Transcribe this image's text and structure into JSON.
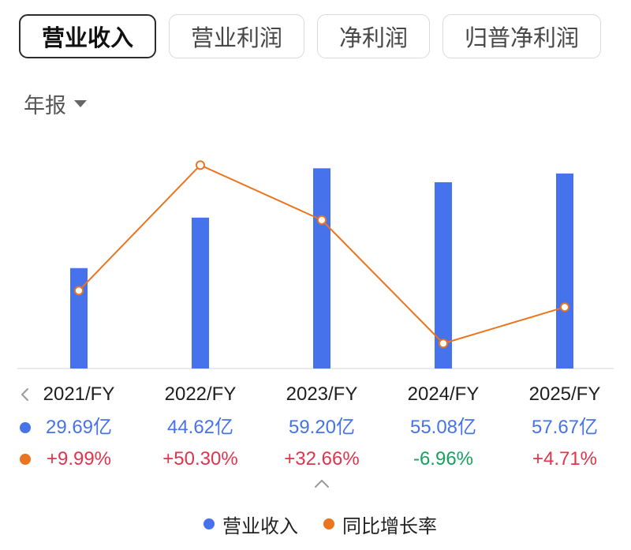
{
  "tabs": [
    {
      "label": "营业收入",
      "selected": true
    },
    {
      "label": "营业利润",
      "selected": false
    },
    {
      "label": "净利润",
      "selected": false
    },
    {
      "label": "归普净利润",
      "selected": false
    }
  ],
  "period": {
    "label": "年报",
    "icon": "caret-down-icon"
  },
  "navigation": {
    "previous_icon": "chevron-left-icon",
    "collapse_icon": "chevron-up-icon"
  },
  "colors": {
    "rise": "#E1334B",
    "fall": "#19A05F"
  },
  "chart_data": {
    "type": "bar",
    "categories": [
      "2021/FY",
      "2022/FY",
      "2023/FY",
      "2024/FY",
      "2025/FY"
    ],
    "series": [
      {
        "name": "营业收入",
        "type": "bar",
        "color": "#4673EB",
        "values": [
          29.69,
          44.62,
          59.2,
          55.08,
          57.67
        ],
        "data_labels": [
          "29.69亿",
          "44.62亿",
          "59.20亿",
          "55.08亿",
          "57.67亿"
        ]
      },
      {
        "name": "同比增长率",
        "type": "line",
        "color": "#EB741F",
        "values": [
          9.99,
          50.3,
          32.66,
          -6.96,
          4.71
        ],
        "data_labels": [
          "+9.99%",
          "+50.30%",
          "+32.66%",
          "-6.96%",
          "+4.71%"
        ]
      }
    ],
    "ylim": [
      0,
      70
    ],
    "y2lim": [
      -15,
      61
    ],
    "grid": false,
    "legend": "bottom"
  }
}
